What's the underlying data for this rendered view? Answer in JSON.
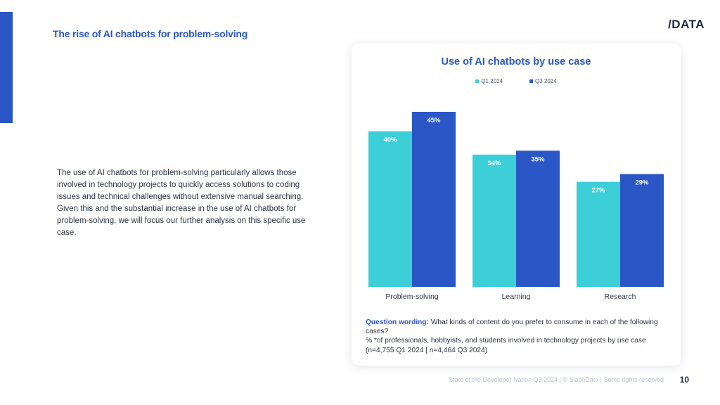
{
  "slide": {
    "title": "The rise of AI chatbots for problem-solving",
    "logo": "DATA",
    "body": "The use of AI chatbots for problem-solving particularly allows those involved in technology projects to quickly access solutions to coding issues and technical challenges without extensive manual searching. Given this and the substantial increase in the use of AI chatbots for problem-solving, we will focus our further analysis on this specific use case.",
    "note_label": "Question wording:",
    "note_text": " What kinds of content do you prefer to consume in each of the following cases?",
    "note_line2": "% *of professionals, hobbyists, and students involved in technology projects by use case (n=4,755 Q1 2024 | n=4,464 Q3 2024)",
    "footer": "State of the Developer Nation Q3 2024 | © SlashData | Some rights reserved",
    "page_number": "10"
  },
  "colors": {
    "accent": "#2b56c6",
    "q1": "#3ccfd8",
    "q3": "#2b56c6"
  },
  "chart_data": {
    "type": "bar",
    "title": "Use of AI chatbots by use case",
    "categories": [
      "Problem-solving",
      "Learning",
      "Research"
    ],
    "series": [
      {
        "name": "Q1 2024",
        "values": [
          40,
          34,
          27
        ],
        "labels": [
          "40%",
          "34%",
          "27%"
        ]
      },
      {
        "name": "Q3 2024",
        "values": [
          45,
          35,
          29
        ],
        "labels": [
          "45%",
          "35%",
          "29%"
        ]
      }
    ],
    "ylim": [
      0,
      45
    ],
    "legend": "top-center",
    "grid": false
  }
}
